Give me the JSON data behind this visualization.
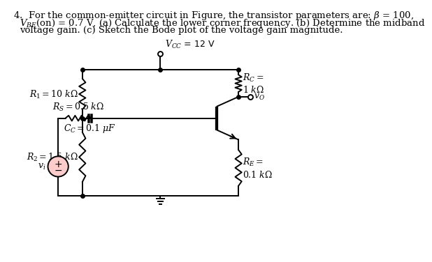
{
  "bg_color": "#ffffff",
  "line_color": "#000000",
  "header1": "4.  For the common-emitter circuit in Figure, the transistor parameters are: $\\beta$ = 100,",
  "header2": "$V_{BE}$(on) = 0.7 V, (a) Calculate the lower corner frequency. (b) Determine the midband",
  "header3": "voltage gain. (c) Sketch the Bode plot of the voltage gain magnitude.",
  "vcc_label": "$V_{CC}$ = 12 V",
  "r1_label": "$R_1 = 10\\ k\\Omega$",
  "r2_label": "$R_2 = 1.5\\ k\\Omega$",
  "rc_label": "$R_C =$\n$1\\ k\\Omega$",
  "re_label": "$R_E =$\n$0.1\\ k\\Omega$",
  "rs_label": "$R_S = 0.5\\ k\\Omega$",
  "cc_label": "$C_C = 0.1\\ \\mu F$",
  "vo_label": "$v_O$",
  "vi_label": "$v_i$",
  "font_size_header": 9.5,
  "font_size_label": 9,
  "lw": 1.4
}
